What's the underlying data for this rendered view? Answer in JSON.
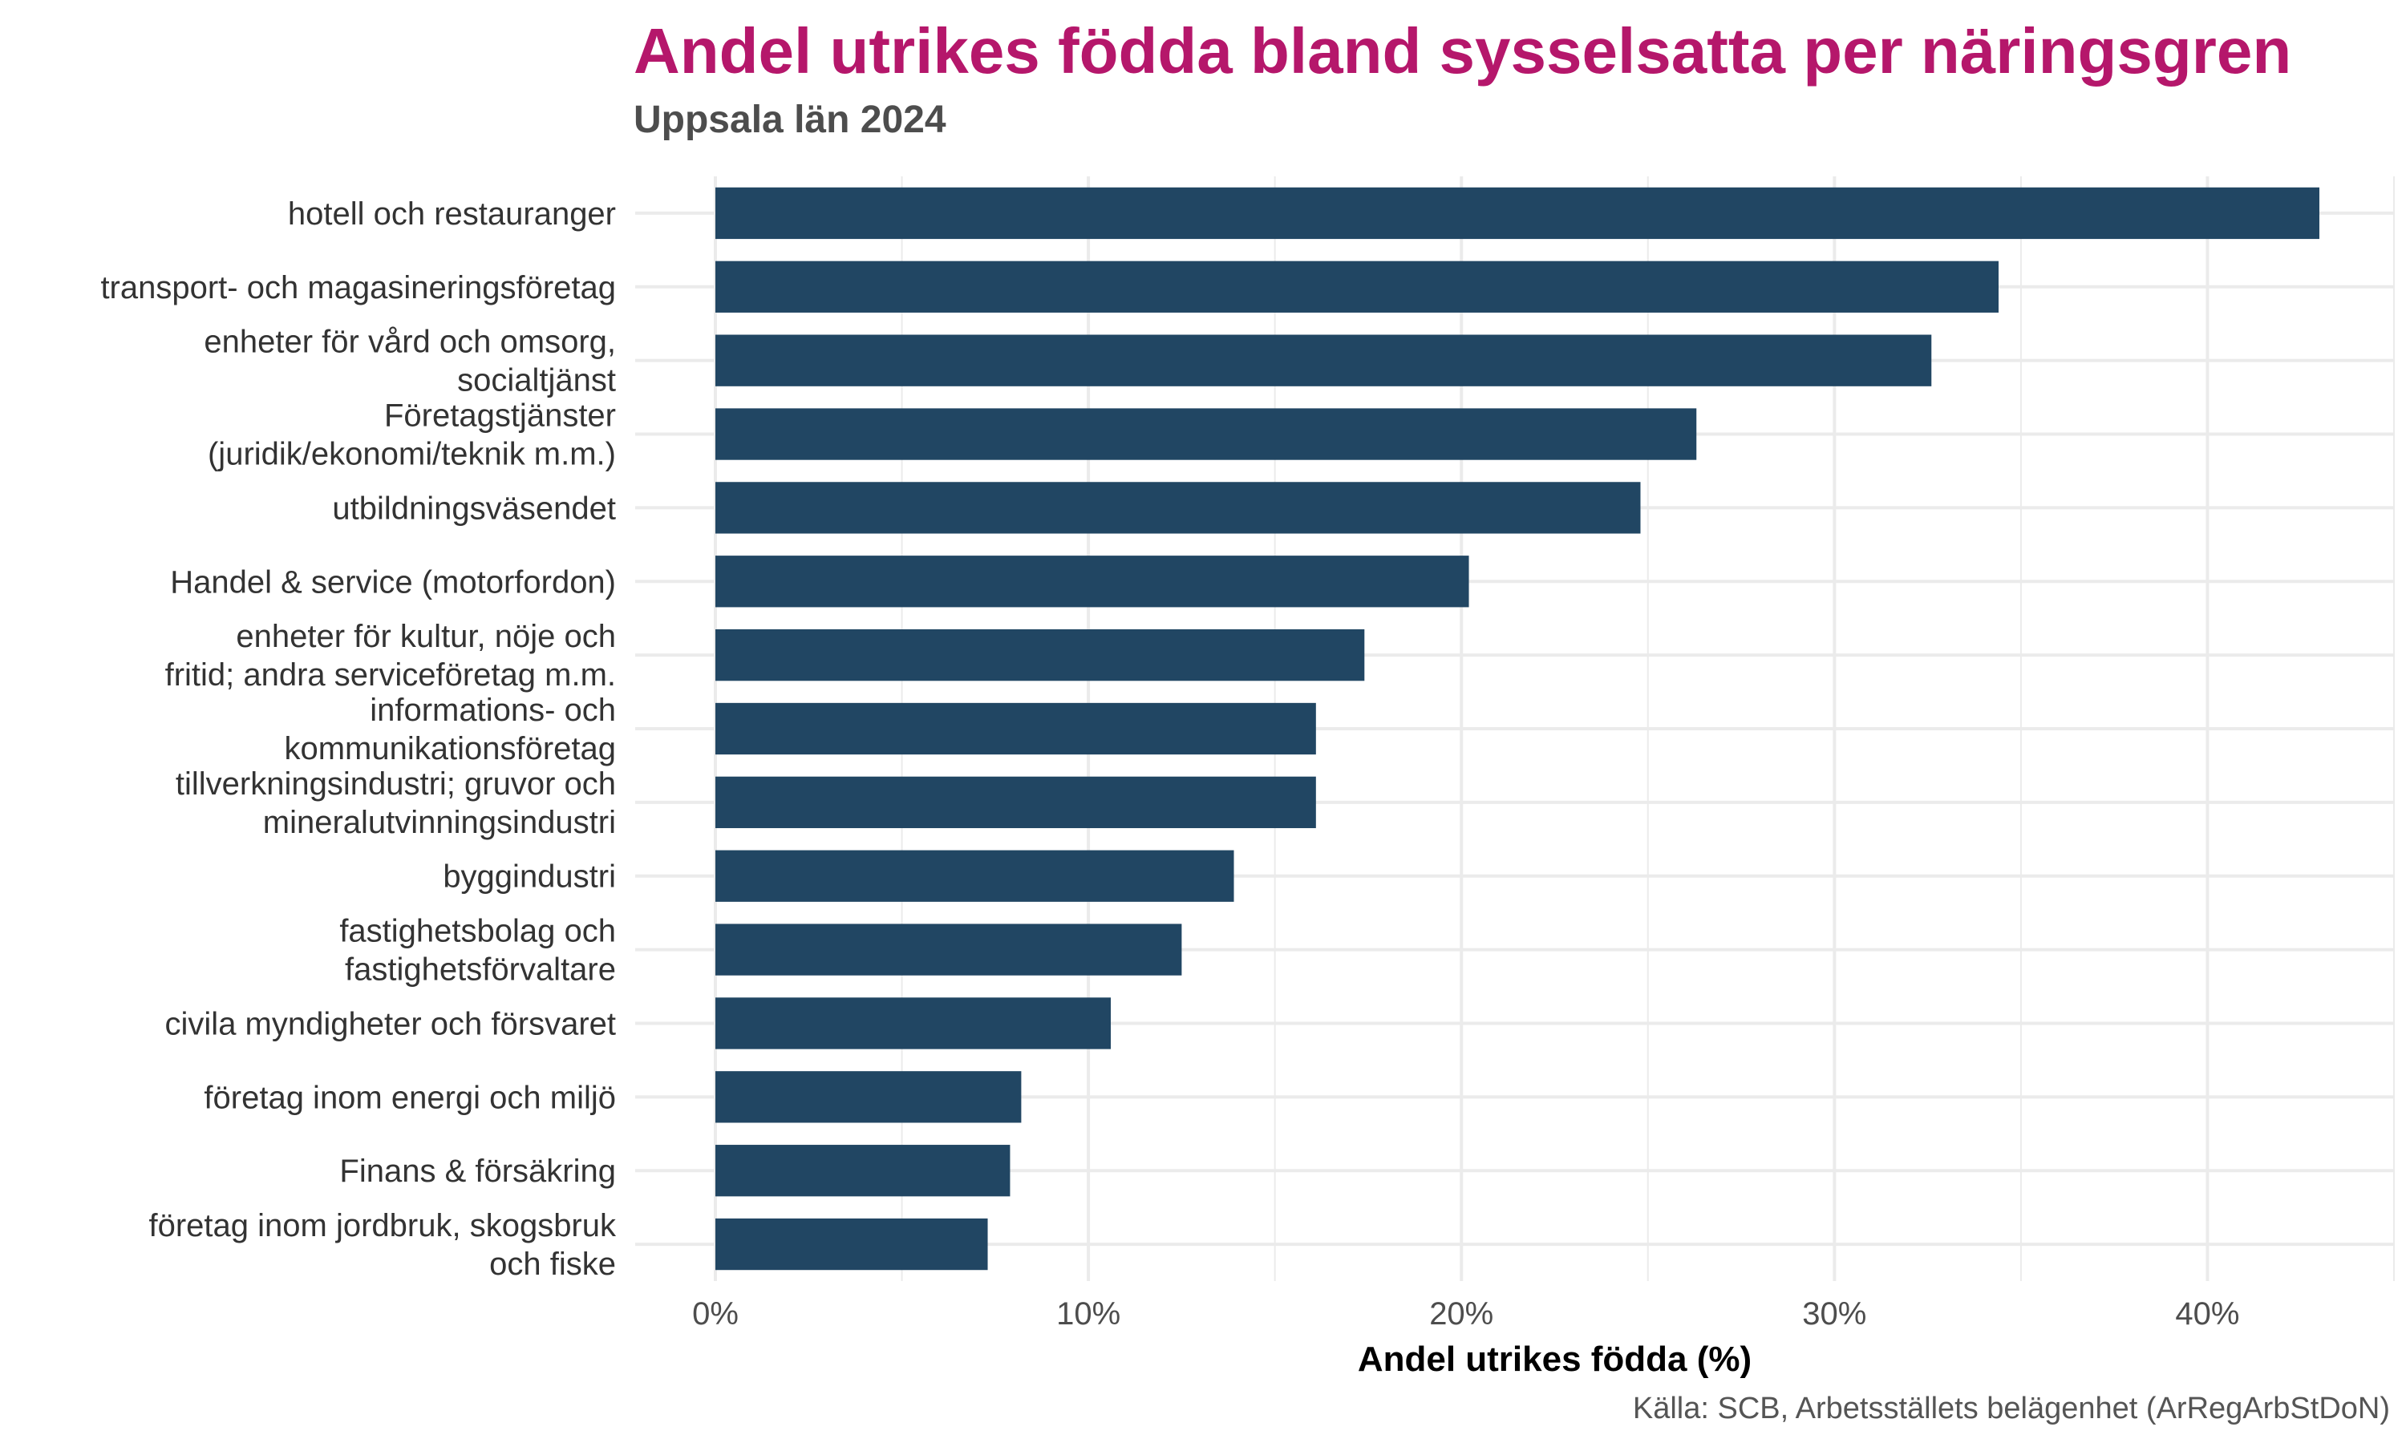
{
  "title": "Andel utrikes födda bland sysselsatta per näringsgren",
  "subtitle": "Uppsala län 2024",
  "caption": "Källa: SCB, Arbetsställets belägenhet (ArRegArbStDoN)",
  "colors": {
    "bar": "#214663",
    "title": "#b5176b",
    "grid": "#ebebeb"
  },
  "chart_data": {
    "type": "bar",
    "orientation": "horizontal",
    "xlabel": "Andel utrikes födda (%)",
    "ylabel": "",
    "xlim": [
      0,
      45
    ],
    "x_ticks": [
      0,
      10,
      20,
      30,
      40
    ],
    "x_tick_labels": [
      "0%",
      "10%",
      "20%",
      "30%",
      "40%"
    ],
    "grid": true,
    "legend": "none",
    "categories": [
      [
        "hotell och restauranger"
      ],
      [
        "transport- och magasineringsföretag"
      ],
      [
        "enheter för vård och omsorg,",
        "socialtjänst"
      ],
      [
        "Företagstjänster",
        "(juridik/ekonomi/teknik m.m.)"
      ],
      [
        "utbildningsväsendet"
      ],
      [
        "Handel & service (motorfordon)"
      ],
      [
        "enheter för kultur, nöje och",
        "fritid; andra serviceföretag m.m."
      ],
      [
        "informations- och",
        "kommunikationsföretag"
      ],
      [
        "tillverkningsindustri; gruvor och",
        "mineralutvinningsindustri"
      ],
      [
        "byggindustri"
      ],
      [
        "fastighetsbolag och",
        "fastighetsförvaltare"
      ],
      [
        "civila myndigheter och försvaret"
      ],
      [
        "företag inom energi och miljö"
      ],
      [
        "Finans & försäkring"
      ],
      [
        "företag inom jordbruk, skogsbruk",
        "och fiske"
      ]
    ],
    "values": [
      43.0,
      34.4,
      32.6,
      26.3,
      24.8,
      20.2,
      17.4,
      16.1,
      16.1,
      13.9,
      12.5,
      10.6,
      8.2,
      7.9,
      7.3
    ]
  }
}
